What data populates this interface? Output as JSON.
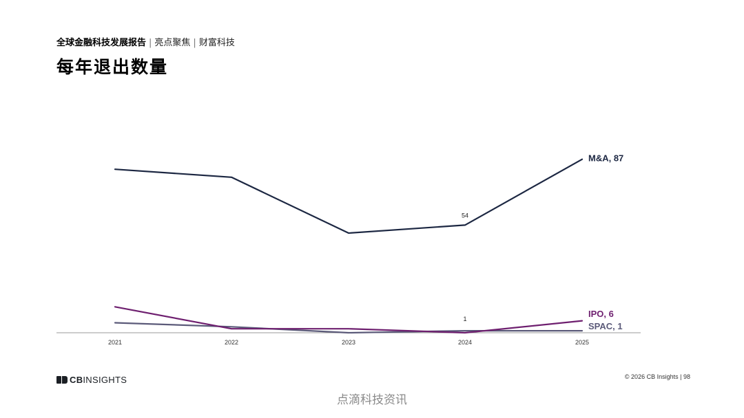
{
  "header": {
    "report_name": "全球金融科技发展报告",
    "separator": "|",
    "section_name": "亮点聚焦",
    "separator2": "|",
    "topic_name": "财富科技"
  },
  "page_title": "每年退出数量",
  "chart_data": {
    "type": "line",
    "categories": [
      "2021",
      "2022",
      "2023",
      "2024",
      "2025"
    ],
    "ylim": [
      0,
      100
    ],
    "grid": false,
    "series": [
      {
        "name": "M&A",
        "color": "#1c2742",
        "values": [
          82,
          78,
          50,
          54,
          87
        ],
        "end_label": "M&A, 87",
        "point_labels": {
          "3": "54"
        }
      },
      {
        "name": "IPO",
        "color": "#6e1f6f",
        "values": [
          13,
          2,
          2,
          0,
          6
        ],
        "end_label": "IPO, 6"
      },
      {
        "name": "SPAC",
        "color": "#5b5a79",
        "values": [
          5,
          3,
          0,
          1,
          1
        ],
        "end_label": "SPAC, 1",
        "point_labels": {
          "3": "1"
        }
      }
    ]
  },
  "footer": {
    "logo_prefix": "CB",
    "logo_suffix": "INSIGHTS",
    "copyright": "© 2026 CB Insights",
    "separator": "|",
    "page_number": "98"
  },
  "watermark": "点滴科技资讯"
}
